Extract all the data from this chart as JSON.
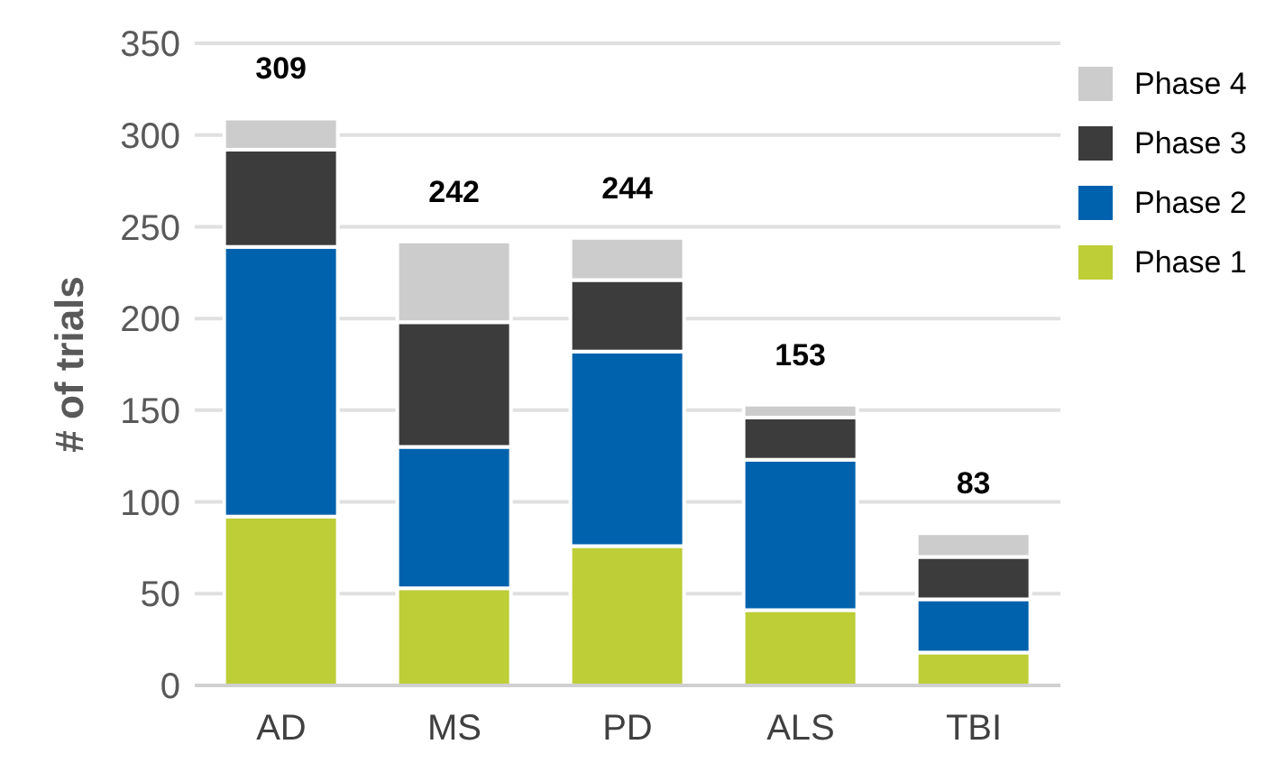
{
  "chart_data": {
    "type": "bar",
    "stacked": true,
    "ylabel": "# of trials",
    "categories": [
      "AD",
      "MS",
      "PD",
      "ALS",
      "TBI"
    ],
    "series": [
      {
        "name": "Phase 1",
        "color": "#bdce37",
        "values": [
          92,
          53,
          76,
          41,
          18
        ]
      },
      {
        "name": "Phase 2",
        "color": "#0062ad",
        "values": [
          147,
          77,
          106,
          82,
          29
        ]
      },
      {
        "name": "Phase 3",
        "color": "#3c3c3c",
        "values": [
          53,
          68,
          39,
          23,
          23
        ]
      },
      {
        "name": "Phase 4",
        "color": "#cccccc",
        "values": [
          17,
          44,
          23,
          7,
          13
        ]
      }
    ],
    "totals": [
      "309",
      "242",
      "244",
      "153",
      "83"
    ],
    "ylim": [
      0,
      350
    ],
    "yticks": [
      0,
      50,
      100,
      150,
      200,
      250,
      300,
      350
    ],
    "grid": "y",
    "legend": "top right"
  }
}
